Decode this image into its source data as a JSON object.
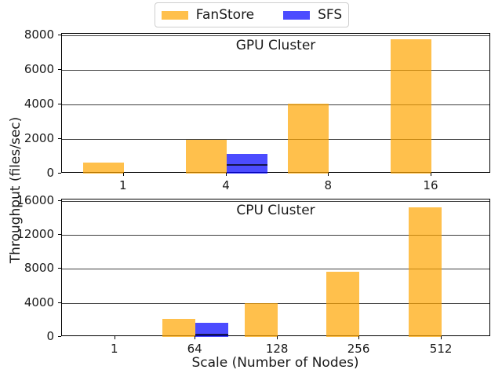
{
  "figure": {
    "xlabel": "Scale (Number of Nodes)",
    "ylabel": "Throughput (files/sec)",
    "background": "#ffffff",
    "gridline_color": "#3f3f3f",
    "legend": {
      "items": [
        {
          "label": "FanStore",
          "color": "rgba(255,165,0,0.7)",
          "base_color": "#FFA500"
        },
        {
          "label": "SFS",
          "color": "rgba(0,0,255,0.7)",
          "base_color": "#0000FF"
        }
      ]
    }
  },
  "chart_data": [
    {
      "type": "bar",
      "title": "GPU Cluster",
      "xlabel": "",
      "ylabel": "Throughput (files/sec)",
      "categories": [
        "1",
        "4",
        "8",
        "16"
      ],
      "series": [
        {
          "name": "FanStore",
          "color": "rgba(255,165,0,0.7)",
          "values": [
            620,
            1950,
            4050,
            7750
          ]
        },
        {
          "name": "SFS",
          "color": "rgba(0,0,255,0.7)",
          "values": [
            null,
            1130,
            null,
            null
          ]
        }
      ],
      "marker_lines": [
        {
          "series": "SFS",
          "category": "4",
          "value": 560,
          "color": "#15154d"
        }
      ],
      "ylim": [
        0,
        8080
      ],
      "yticks": [
        0,
        2000,
        4000,
        6000,
        8000
      ],
      "grid": true,
      "legend_position": "top-center-above-figure"
    },
    {
      "type": "bar",
      "title": "CPU Cluster",
      "xlabel": "Scale (Number of Nodes)",
      "ylabel": "Throughput (files/sec)",
      "categories": [
        "1",
        "64",
        "128",
        "256",
        "512"
      ],
      "series": [
        {
          "name": "FanStore",
          "color": "rgba(255,165,0,0.7)",
          "values": [
            0,
            2100,
            3950,
            7700,
            15250
          ]
        },
        {
          "name": "SFS",
          "color": "rgba(0,0,255,0.7)",
          "values": [
            null,
            1700,
            null,
            null,
            null
          ]
        }
      ],
      "marker_lines": [
        {
          "series": "SFS",
          "category": "64",
          "value": 400,
          "color": "#15154d"
        }
      ],
      "ylim": [
        0,
        16150
      ],
      "yticks": [
        0,
        4000,
        8000,
        12000,
        16000
      ],
      "grid": true
    }
  ]
}
